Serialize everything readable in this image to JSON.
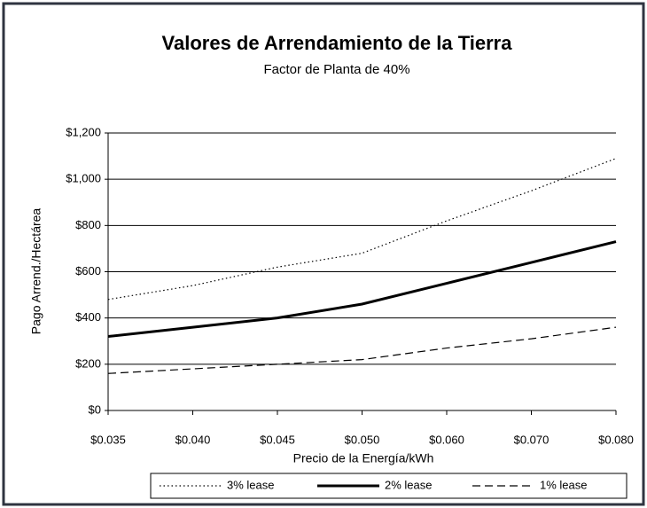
{
  "chart_data": {
    "type": "line",
    "title": "Valores de Arrendamiento de la Tierra",
    "subtitle": "Factor de Planta de 40%",
    "x_label": "Precio de la Energía/kWh",
    "y_label": "Pago Arrend./Hectárea",
    "categories": [
      "$0.035",
      "$0.040",
      "$0.045",
      "$0.050",
      "$0.060",
      "$0.070",
      "$0.080"
    ],
    "series": [
      {
        "name": "3% lease",
        "color": "#000000",
        "dash": "dotted",
        "values": [
          480,
          540,
          620,
          680,
          820,
          950,
          1090
        ]
      },
      {
        "name": "2% lease",
        "color": "#000000",
        "dash": "solid",
        "values": [
          320,
          360,
          400,
          460,
          550,
          640,
          730
        ]
      },
      {
        "name": "1% lease",
        "color": "#000000",
        "dash": "dashed",
        "values": [
          160,
          180,
          200,
          220,
          270,
          310,
          360
        ]
      }
    ],
    "ylim": [
      0,
      1200
    ],
    "yticks": [
      {
        "value": 0,
        "label": "$0"
      },
      {
        "value": 200,
        "label": "$200"
      },
      {
        "value": 400,
        "label": "$400"
      },
      {
        "value": 600,
        "label": "$600"
      },
      {
        "value": 800,
        "label": "$800"
      },
      {
        "value": 1000,
        "label": "$1,000"
      },
      {
        "value": 1200,
        "label": "$1,200"
      }
    ],
    "grid": true,
    "legend": "bottom"
  }
}
